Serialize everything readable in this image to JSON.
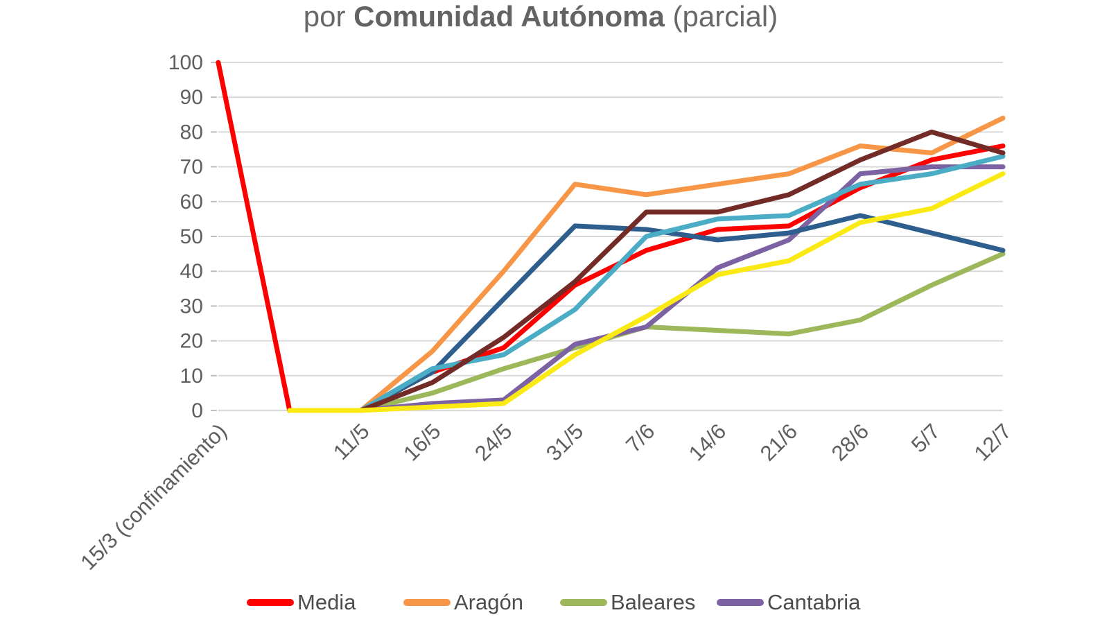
{
  "title": {
    "prefix": "por ",
    "bold": "Comunidad Autónoma",
    "suffix": " (parcial)"
  },
  "legend": {
    "position": "bottom",
    "items": [
      {
        "label": "Media",
        "color": "#fe0000"
      },
      {
        "label": "Aragón",
        "color": "#f79646"
      },
      {
        "label": "Baleares",
        "color": "#9cb85a"
      },
      {
        "label": "Cantabria",
        "color": "#7d62a3"
      }
    ]
  },
  "axis": {
    "y_ticks": [
      0,
      10,
      20,
      30,
      40,
      50,
      60,
      70,
      80,
      90,
      100
    ],
    "x_labels": [
      "15/3 (confinamiento)",
      "",
      "11/5",
      "16/5",
      "24/5",
      "31/5",
      "7/6",
      "14/6",
      "21/6",
      "28/6",
      "5/7",
      "12/7"
    ]
  },
  "chart_data": {
    "type": "line",
    "title": "por Comunidad Autónoma (parcial)",
    "ylim": [
      0,
      100
    ],
    "ytick_step": 10,
    "grid": true,
    "legend_position": "bottom",
    "categories": [
      "15/3 (confinamiento)",
      "",
      "11/5",
      "16/5",
      "24/5",
      "31/5",
      "7/6",
      "14/6",
      "21/6",
      "28/6",
      "5/7",
      "12/7"
    ],
    "series": [
      {
        "name": "Media",
        "color": "#fe0000",
        "color_name": "red",
        "values": [
          100,
          0,
          0,
          11,
          18,
          36,
          46,
          52,
          53,
          64,
          72,
          76
        ]
      },
      {
        "name": "Aragón",
        "color": "#f79646",
        "color_name": "orange",
        "values": [
          null,
          0,
          0,
          17,
          40,
          65,
          62,
          65,
          68,
          76,
          74,
          84
        ]
      },
      {
        "name": "Baleares",
        "color": "#9cb85a",
        "color_name": "olive-green",
        "values": [
          null,
          0,
          0,
          5,
          12,
          18,
          24,
          23,
          22,
          26,
          36,
          45
        ]
      },
      {
        "name": "Cantabria",
        "color": "#7d62a3",
        "color_name": "purple",
        "values": [
          null,
          0,
          0,
          2,
          3,
          19,
          24,
          41,
          49,
          68,
          70,
          70
        ]
      },
      {
        "name": "",
        "color": "#2d5e8e",
        "color_name": "dark-blue",
        "values": [
          null,
          0,
          0,
          11,
          32,
          53,
          52,
          49,
          51,
          56,
          51,
          46
        ]
      },
      {
        "name": "",
        "color": "#4bacc6",
        "color_name": "light-blue",
        "values": [
          null,
          0,
          0,
          12,
          16,
          29,
          50,
          55,
          56,
          65,
          68,
          73
        ]
      },
      {
        "name": "",
        "color": "#722b26",
        "color_name": "dark-maroon",
        "values": [
          null,
          0,
          0,
          8,
          21,
          37,
          57,
          57,
          62,
          72,
          80,
          74
        ]
      },
      {
        "name": "",
        "color": "#fbe914",
        "color_name": "yellow",
        "values": [
          null,
          0,
          0,
          1,
          2,
          16,
          27,
          39,
          43,
          54,
          58,
          68
        ]
      }
    ]
  },
  "style": {
    "gridline_color": "#d9d9d9",
    "tick_mark_color": "#bdbdbd",
    "tick_label_color": "#5f5f5f",
    "title_color": "#686868",
    "background": "#ffffff"
  }
}
